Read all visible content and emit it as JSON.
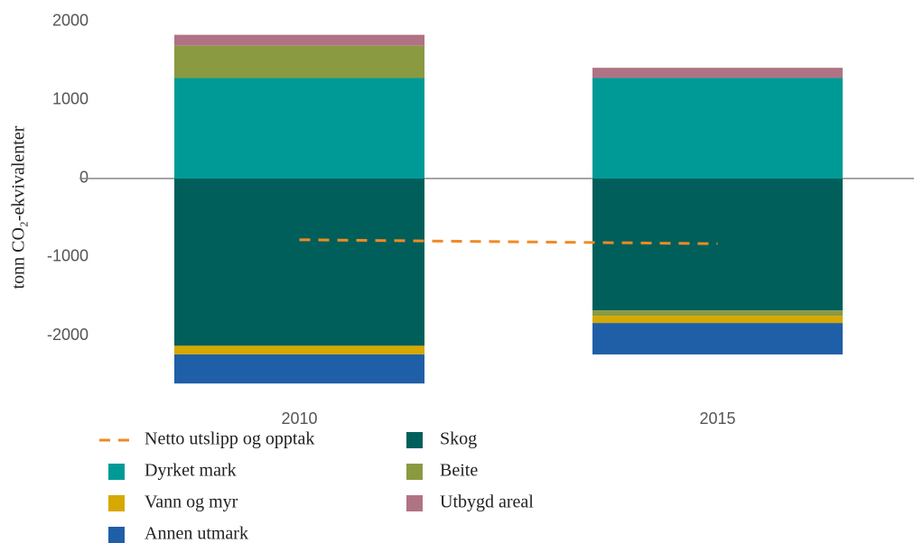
{
  "chart_data": {
    "type": "stacked_bar",
    "ylabel": "tonn CO₂-ekvivalenter",
    "categories": [
      "2010",
      "2015"
    ],
    "series": [
      {
        "name": "Skog",
        "color": "#005f5a",
        "values": [
          -2130,
          -1680
        ]
      },
      {
        "name": "Dyrket mark",
        "color": "#009a96",
        "values": [
          1280,
          1280
        ]
      },
      {
        "name": "Beite",
        "color": "#8a9a40",
        "values": [
          410,
          -70
        ]
      },
      {
        "name": "Vann og myr",
        "color": "#d6a800",
        "values": [
          -110,
          -90
        ]
      },
      {
        "name": "Utbygd areal",
        "color": "#b07384",
        "values": [
          140,
          130
        ]
      },
      {
        "name": "Annen utmark",
        "color": "#1f5fa8",
        "values": [
          -370,
          -400
        ]
      }
    ],
    "line": {
      "name": "Netto utslipp og opptak",
      "color": "#f08a24",
      "values": [
        -780,
        -830
      ]
    },
    "ylim": [
      -2700,
      2250
    ],
    "yticks": [
      -2000,
      -1000,
      0,
      1000,
      2000
    ],
    "grid": false
  }
}
